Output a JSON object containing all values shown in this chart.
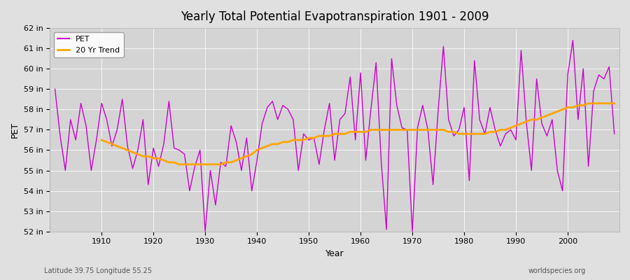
{
  "title": "Yearly Total Potential Evapotranspiration 1901 - 2009",
  "xlabel": "Year",
  "ylabel": "PET",
  "subtitle_left": "Latitude 39.75 Longitude 55.25",
  "subtitle_right": "worldspecies.org",
  "pet_color": "#cc00cc",
  "trend_color": "#ffa500",
  "ylim": [
    52,
    62
  ],
  "yticks": [
    52,
    53,
    54,
    55,
    56,
    57,
    58,
    59,
    60,
    61,
    62
  ],
  "xlim": [
    1900,
    2010
  ],
  "xticks": [
    1910,
    1920,
    1930,
    1940,
    1950,
    1960,
    1970,
    1980,
    1990,
    2000
  ],
  "years": [
    1901,
    1902,
    1903,
    1904,
    1905,
    1906,
    1907,
    1908,
    1909,
    1910,
    1911,
    1912,
    1913,
    1914,
    1915,
    1916,
    1917,
    1918,
    1919,
    1920,
    1921,
    1922,
    1923,
    1924,
    1925,
    1926,
    1927,
    1928,
    1929,
    1930,
    1931,
    1932,
    1933,
    1934,
    1935,
    1936,
    1937,
    1938,
    1939,
    1940,
    1941,
    1942,
    1943,
    1944,
    1945,
    1946,
    1947,
    1948,
    1949,
    1950,
    1951,
    1952,
    1953,
    1954,
    1955,
    1956,
    1957,
    1958,
    1959,
    1960,
    1961,
    1962,
    1963,
    1964,
    1965,
    1966,
    1967,
    1968,
    1969,
    1970,
    1971,
    1972,
    1973,
    1974,
    1975,
    1976,
    1977,
    1978,
    1979,
    1980,
    1981,
    1982,
    1983,
    1984,
    1985,
    1986,
    1987,
    1988,
    1989,
    1990,
    1991,
    1992,
    1993,
    1994,
    1995,
    1996,
    1997,
    1998,
    1999,
    2000,
    2001,
    2002,
    2003,
    2004,
    2005,
    2006,
    2007,
    2008,
    2009
  ],
  "pet": [
    59.0,
    56.7,
    55.0,
    57.5,
    56.5,
    58.3,
    57.2,
    55.0,
    56.5,
    58.3,
    57.5,
    56.2,
    57.0,
    58.5,
    56.2,
    55.1,
    56.0,
    57.5,
    54.3,
    56.1,
    55.2,
    56.3,
    58.4,
    56.1,
    56.0,
    55.8,
    54.0,
    55.2,
    56.0,
    52.0,
    55.0,
    53.3,
    55.4,
    55.2,
    57.2,
    56.4,
    55.0,
    56.6,
    54.0,
    55.5,
    57.3,
    58.1,
    58.4,
    57.5,
    58.2,
    58.0,
    57.5,
    55.0,
    56.8,
    56.5,
    56.6,
    55.3,
    57.0,
    58.3,
    55.5,
    57.5,
    57.8,
    59.6,
    56.5,
    59.8,
    55.5,
    58.0,
    60.3,
    55.4,
    52.1,
    60.5,
    58.2,
    57.1,
    57.0,
    52.0,
    57.1,
    58.2,
    57.0,
    54.3,
    58.0,
    61.1,
    57.5,
    56.7,
    57.0,
    58.1,
    54.5,
    60.4,
    57.5,
    56.8,
    58.1,
    57.0,
    56.2,
    56.8,
    57.0,
    56.5,
    60.9,
    57.4,
    55.0,
    59.5,
    57.3,
    56.7,
    57.5,
    55.0,
    54.0,
    59.7,
    61.4,
    57.5,
    60.0,
    55.2,
    58.9,
    59.7,
    59.5,
    60.1,
    56.8
  ],
  "trend_years": [
    1910,
    1911,
    1912,
    1913,
    1914,
    1915,
    1916,
    1917,
    1918,
    1919,
    1920,
    1921,
    1922,
    1923,
    1924,
    1925,
    1926,
    1927,
    1928,
    1929,
    1930,
    1931,
    1932,
    1933,
    1934,
    1935,
    1936,
    1937,
    1938,
    1939,
    1940,
    1941,
    1942,
    1943,
    1944,
    1945,
    1946,
    1947,
    1948,
    1949,
    1950,
    1951,
    1952,
    1953,
    1954,
    1955,
    1956,
    1957,
    1958,
    1959,
    1960,
    1961,
    1962,
    1963,
    1964,
    1965,
    1966,
    1967,
    1968,
    1969,
    1970,
    1971,
    1972,
    1973,
    1974,
    1975,
    1976,
    1977,
    1978,
    1979,
    1980,
    1981,
    1982,
    1983,
    1984,
    1985,
    1986,
    1987,
    1988,
    1989,
    1990,
    1991,
    1992,
    1993,
    1994,
    1995,
    1996,
    1997,
    1998,
    1999,
    2000,
    2001,
    2002,
    2003,
    2004,
    2005,
    2006,
    2007,
    2008,
    2009
  ],
  "trend": [
    56.5,
    56.4,
    56.3,
    56.2,
    56.1,
    56.0,
    55.9,
    55.8,
    55.7,
    55.7,
    55.6,
    55.6,
    55.5,
    55.4,
    55.4,
    55.3,
    55.3,
    55.3,
    55.3,
    55.3,
    55.3,
    55.3,
    55.3,
    55.3,
    55.4,
    55.4,
    55.5,
    55.6,
    55.7,
    55.8,
    56.0,
    56.1,
    56.2,
    56.3,
    56.3,
    56.4,
    56.4,
    56.5,
    56.5,
    56.5,
    56.6,
    56.6,
    56.7,
    56.7,
    56.7,
    56.8,
    56.8,
    56.8,
    56.9,
    56.9,
    56.9,
    56.9,
    57.0,
    57.0,
    57.0,
    57.0,
    57.0,
    57.0,
    57.0,
    57.0,
    57.0,
    57.0,
    57.0,
    57.0,
    57.0,
    57.0,
    57.0,
    56.9,
    56.9,
    56.8,
    56.8,
    56.8,
    56.8,
    56.8,
    56.8,
    56.9,
    56.9,
    57.0,
    57.0,
    57.1,
    57.2,
    57.3,
    57.4,
    57.5,
    57.5,
    57.6,
    57.7,
    57.8,
    57.9,
    58.0,
    58.1,
    58.1,
    58.2,
    58.2,
    58.3,
    58.3,
    58.3,
    58.3,
    58.3,
    58.3
  ]
}
